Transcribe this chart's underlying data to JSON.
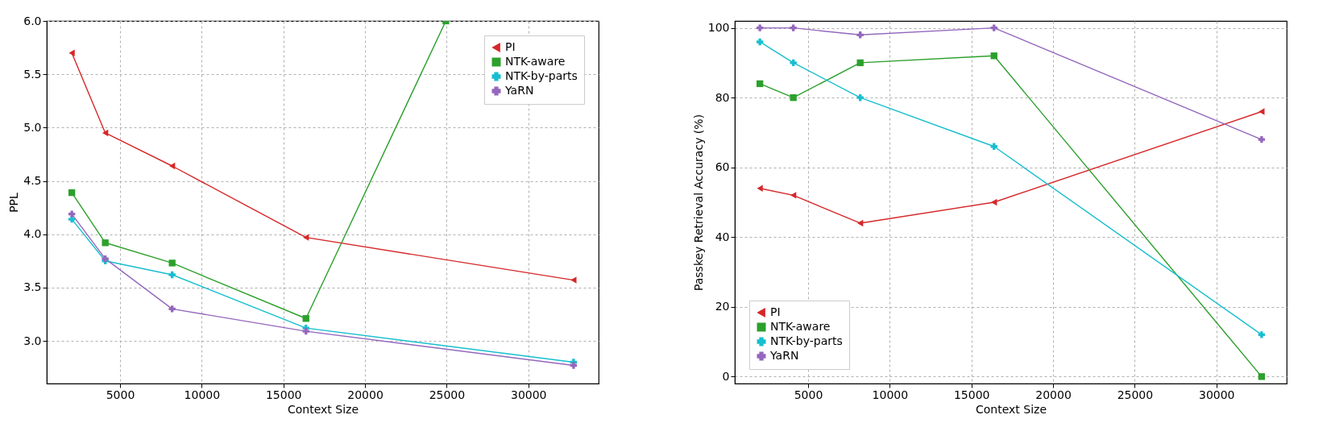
{
  "chart_data": [
    {
      "type": "line",
      "xlabel": "Context Size",
      "ylabel": "PPL",
      "x": [
        2048,
        4096,
        8192,
        16384,
        32768
      ],
      "xlim": [
        512,
        34304
      ],
      "xticks": [
        5000,
        10000,
        15000,
        20000,
        25000,
        30000
      ],
      "ylim": [
        2.6,
        6.0
      ],
      "yticks": [
        {
          "value": 3,
          "label": "3.0"
        },
        {
          "value": 3.5,
          "label": "3.5"
        },
        {
          "value": 4,
          "label": "4.0"
        },
        {
          "value": 4.5,
          "label": "4.5"
        },
        {
          "value": 5,
          "label": "5.0"
        },
        {
          "value": 5.5,
          "label": "5.5"
        },
        {
          "value": 6,
          "label": "6.0"
        }
      ],
      "grid": true,
      "legend": "top right",
      "line_style": "solid",
      "series": [
        {
          "name": "PI",
          "color": "#d62728",
          "marker": "triangle",
          "values": [
            5.7,
            4.95,
            4.64,
            3.97,
            3.57
          ]
        },
        {
          "name": "NTK-aware",
          "color": "#2ca02c",
          "marker": "square",
          "x": [
            2048,
            4096,
            8192,
            16384,
            24950
          ],
          "values": [
            4.39,
            3.92,
            3.73,
            3.21,
            6.0
          ]
        },
        {
          "name": "NTK-by-parts",
          "color": "#17becf",
          "marker": "cross",
          "values": [
            4.14,
            3.75,
            3.62,
            3.12,
            2.8
          ]
        },
        {
          "name": "YaRN",
          "color": "#9467bd",
          "marker": "cross",
          "values": [
            4.19,
            3.77,
            3.3,
            3.09,
            2.77
          ]
        }
      ]
    },
    {
      "type": "line",
      "xlabel": "Context Size",
      "ylabel": "Passkey Retrieval Accuracy (%)",
      "x": [
        2048,
        4096,
        8192,
        16384,
        32768
      ],
      "xlim": [
        512,
        34304
      ],
      "xticks": [
        5000,
        10000,
        15000,
        20000,
        25000,
        30000
      ],
      "ylim": [
        -2,
        102
      ],
      "yticks": [
        0,
        20,
        40,
        60,
        80,
        100
      ],
      "grid": true,
      "legend": "bottom left",
      "line_style": "solid",
      "series": [
        {
          "name": "PI",
          "color": "#d62728",
          "marker": "triangle",
          "values": [
            54,
            52,
            44,
            50,
            76
          ]
        },
        {
          "name": "NTK-aware",
          "color": "#2ca02c",
          "marker": "square",
          "values": [
            84,
            80,
            90,
            92,
            0
          ]
        },
        {
          "name": "NTK-by-parts",
          "color": "#17becf",
          "marker": "cross",
          "values": [
            96,
            90,
            80,
            66,
            12
          ]
        },
        {
          "name": "YaRN",
          "color": "#9467bd",
          "marker": "cross",
          "values": [
            100,
            100,
            98,
            100,
            68
          ]
        }
      ]
    }
  ]
}
